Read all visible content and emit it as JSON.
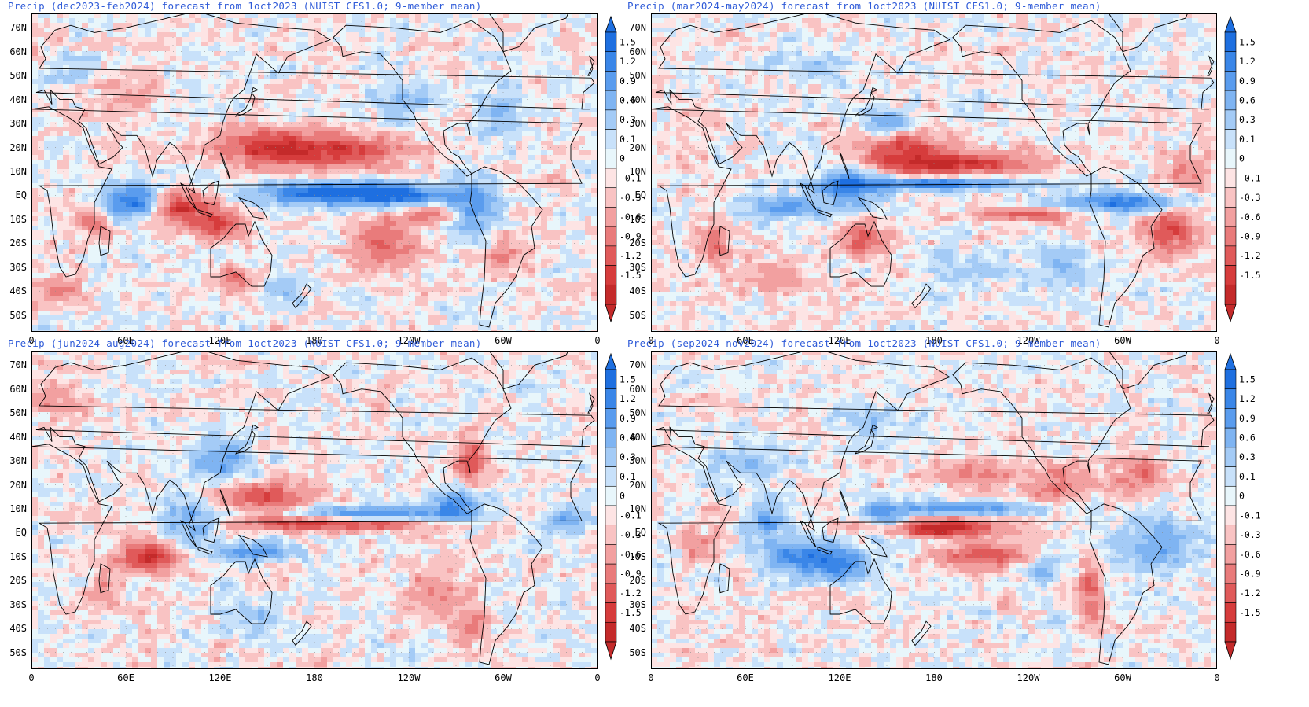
{
  "panels": [
    {
      "title": "Precip (dec2023-feb2024) forecast from 1oct2023 (NUIST CFS1.0; 9-member mean)",
      "pattern": "djf"
    },
    {
      "title": "Precip (mar2024-may2024) forecast from 1oct2023 (NUIST CFS1.0; 9-member mean)",
      "pattern": "mam"
    },
    {
      "title": "Precip (jun2024-aug2024) forecast from 1oct2023 (NUIST CFS1.0; 9-member mean)",
      "pattern": "jja"
    },
    {
      "title": "Precip (sep2024-nov2024) forecast from 1oct2023 (NUIST CFS1.0; 9-member mean)",
      "pattern": "son"
    }
  ],
  "lat_labels": [
    "70N",
    "60N",
    "50N",
    "40N",
    "30N",
    "20N",
    "10N",
    "EQ",
    "10S",
    "20S",
    "30S",
    "40S",
    "50S"
  ],
  "lon_labels": [
    "0",
    "60E",
    "120E",
    "180",
    "120W",
    "60W",
    "0"
  ],
  "colorbar_levels": [
    "1.5",
    "1.2",
    "0.9",
    "0.6",
    "0.3",
    "0.1",
    "0",
    "-0.1",
    "-0.3",
    "-0.6",
    "-0.9",
    "-1.2",
    "-1.5"
  ],
  "colorbar_colors": [
    "#1e6fe0",
    "#3a86e8",
    "#5a9cee",
    "#7fb4f2",
    "#a4cbf6",
    "#c8e1fa",
    "#e8f6fb",
    "#fde4e4",
    "#f9c3c3",
    "#f2a0a0",
    "#e97b7b",
    "#e05a5a",
    "#d63c3c",
    "#c42a2a"
  ],
  "colors": {
    "title": "#2f5bd8",
    "coast": "#000000",
    "wet": "#2c7fe6",
    "dry": "#d9403f"
  }
}
